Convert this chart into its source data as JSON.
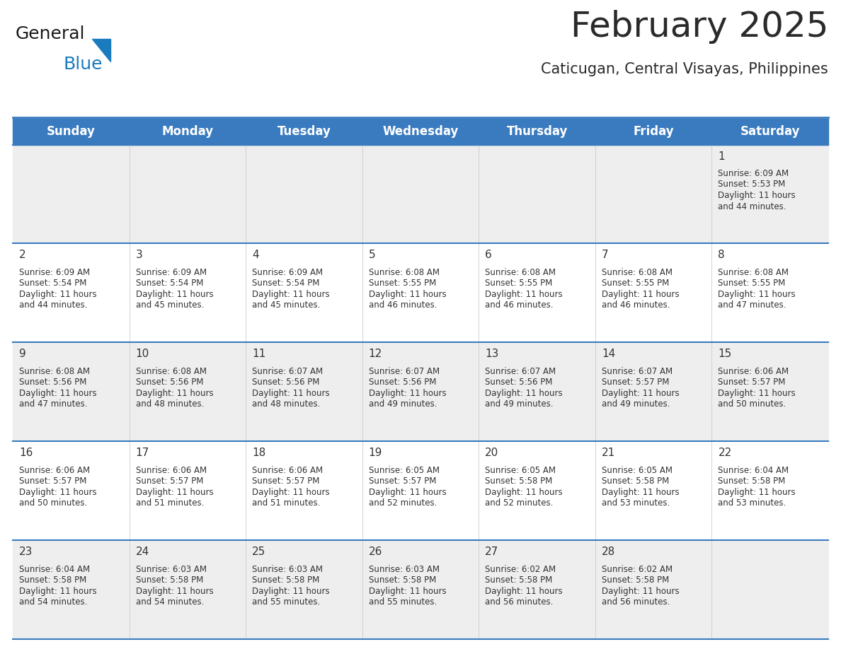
{
  "title": "February 2025",
  "subtitle": "Caticugan, Central Visayas, Philippines",
  "header_bg": "#3a7bbf",
  "header_text": "#ffffff",
  "odd_row_bg": "#eeeeee",
  "even_row_bg": "#ffffff",
  "day_headers": [
    "Sunday",
    "Monday",
    "Tuesday",
    "Wednesday",
    "Thursday",
    "Friday",
    "Saturday"
  ],
  "days": [
    {
      "date": 1,
      "col": 6,
      "row": 0,
      "sunrise": "6:09 AM",
      "sunset": "5:53 PM",
      "daylight_h": "11 hours",
      "daylight_m": "and 44 minutes."
    },
    {
      "date": 2,
      "col": 0,
      "row": 1,
      "sunrise": "6:09 AM",
      "sunset": "5:54 PM",
      "daylight_h": "11 hours",
      "daylight_m": "and 44 minutes."
    },
    {
      "date": 3,
      "col": 1,
      "row": 1,
      "sunrise": "6:09 AM",
      "sunset": "5:54 PM",
      "daylight_h": "11 hours",
      "daylight_m": "and 45 minutes."
    },
    {
      "date": 4,
      "col": 2,
      "row": 1,
      "sunrise": "6:09 AM",
      "sunset": "5:54 PM",
      "daylight_h": "11 hours",
      "daylight_m": "and 45 minutes."
    },
    {
      "date": 5,
      "col": 3,
      "row": 1,
      "sunrise": "6:08 AM",
      "sunset": "5:55 PM",
      "daylight_h": "11 hours",
      "daylight_m": "and 46 minutes."
    },
    {
      "date": 6,
      "col": 4,
      "row": 1,
      "sunrise": "6:08 AM",
      "sunset": "5:55 PM",
      "daylight_h": "11 hours",
      "daylight_m": "and 46 minutes."
    },
    {
      "date": 7,
      "col": 5,
      "row": 1,
      "sunrise": "6:08 AM",
      "sunset": "5:55 PM",
      "daylight_h": "11 hours",
      "daylight_m": "and 46 minutes."
    },
    {
      "date": 8,
      "col": 6,
      "row": 1,
      "sunrise": "6:08 AM",
      "sunset": "5:55 PM",
      "daylight_h": "11 hours",
      "daylight_m": "and 47 minutes."
    },
    {
      "date": 9,
      "col": 0,
      "row": 2,
      "sunrise": "6:08 AM",
      "sunset": "5:56 PM",
      "daylight_h": "11 hours",
      "daylight_m": "and 47 minutes."
    },
    {
      "date": 10,
      "col": 1,
      "row": 2,
      "sunrise": "6:08 AM",
      "sunset": "5:56 PM",
      "daylight_h": "11 hours",
      "daylight_m": "and 48 minutes."
    },
    {
      "date": 11,
      "col": 2,
      "row": 2,
      "sunrise": "6:07 AM",
      "sunset": "5:56 PM",
      "daylight_h": "11 hours",
      "daylight_m": "and 48 minutes."
    },
    {
      "date": 12,
      "col": 3,
      "row": 2,
      "sunrise": "6:07 AM",
      "sunset": "5:56 PM",
      "daylight_h": "11 hours",
      "daylight_m": "and 49 minutes."
    },
    {
      "date": 13,
      "col": 4,
      "row": 2,
      "sunrise": "6:07 AM",
      "sunset": "5:56 PM",
      "daylight_h": "11 hours",
      "daylight_m": "and 49 minutes."
    },
    {
      "date": 14,
      "col": 5,
      "row": 2,
      "sunrise": "6:07 AM",
      "sunset": "5:57 PM",
      "daylight_h": "11 hours",
      "daylight_m": "and 49 minutes."
    },
    {
      "date": 15,
      "col": 6,
      "row": 2,
      "sunrise": "6:06 AM",
      "sunset": "5:57 PM",
      "daylight_h": "11 hours",
      "daylight_m": "and 50 minutes."
    },
    {
      "date": 16,
      "col": 0,
      "row": 3,
      "sunrise": "6:06 AM",
      "sunset": "5:57 PM",
      "daylight_h": "11 hours",
      "daylight_m": "and 50 minutes."
    },
    {
      "date": 17,
      "col": 1,
      "row": 3,
      "sunrise": "6:06 AM",
      "sunset": "5:57 PM",
      "daylight_h": "11 hours",
      "daylight_m": "and 51 minutes."
    },
    {
      "date": 18,
      "col": 2,
      "row": 3,
      "sunrise": "6:06 AM",
      "sunset": "5:57 PM",
      "daylight_h": "11 hours",
      "daylight_m": "and 51 minutes."
    },
    {
      "date": 19,
      "col": 3,
      "row": 3,
      "sunrise": "6:05 AM",
      "sunset": "5:57 PM",
      "daylight_h": "11 hours",
      "daylight_m": "and 52 minutes."
    },
    {
      "date": 20,
      "col": 4,
      "row": 3,
      "sunrise": "6:05 AM",
      "sunset": "5:58 PM",
      "daylight_h": "11 hours",
      "daylight_m": "and 52 minutes."
    },
    {
      "date": 21,
      "col": 5,
      "row": 3,
      "sunrise": "6:05 AM",
      "sunset": "5:58 PM",
      "daylight_h": "11 hours",
      "daylight_m": "and 53 minutes."
    },
    {
      "date": 22,
      "col": 6,
      "row": 3,
      "sunrise": "6:04 AM",
      "sunset": "5:58 PM",
      "daylight_h": "11 hours",
      "daylight_m": "and 53 minutes."
    },
    {
      "date": 23,
      "col": 0,
      "row": 4,
      "sunrise": "6:04 AM",
      "sunset": "5:58 PM",
      "daylight_h": "11 hours",
      "daylight_m": "and 54 minutes."
    },
    {
      "date": 24,
      "col": 1,
      "row": 4,
      "sunrise": "6:03 AM",
      "sunset": "5:58 PM",
      "daylight_h": "11 hours",
      "daylight_m": "and 54 minutes."
    },
    {
      "date": 25,
      "col": 2,
      "row": 4,
      "sunrise": "6:03 AM",
      "sunset": "5:58 PM",
      "daylight_h": "11 hours",
      "daylight_m": "and 55 minutes."
    },
    {
      "date": 26,
      "col": 3,
      "row": 4,
      "sunrise": "6:03 AM",
      "sunset": "5:58 PM",
      "daylight_h": "11 hours",
      "daylight_m": "and 55 minutes."
    },
    {
      "date": 27,
      "col": 4,
      "row": 4,
      "sunrise": "6:02 AM",
      "sunset": "5:58 PM",
      "daylight_h": "11 hours",
      "daylight_m": "and 56 minutes."
    },
    {
      "date": 28,
      "col": 5,
      "row": 4,
      "sunrise": "6:02 AM",
      "sunset": "5:58 PM",
      "daylight_h": "11 hours",
      "daylight_m": "and 56 minutes."
    }
  ],
  "logo_text_general": "General",
  "logo_text_blue": "Blue",
  "logo_color_general": "#1a1a1a",
  "logo_color_blue": "#1a7bbf",
  "logo_triangle_color": "#1a7bbf",
  "title_color": "#2a2a2a",
  "subtitle_color": "#2a2a2a",
  "cell_text_color": "#333333",
  "date_num_color": "#333333",
  "row_line_color": "#3a7bbf",
  "col_line_color": "#cccccc",
  "title_fontsize": 36,
  "subtitle_fontsize": 15,
  "header_fontsize": 12,
  "cell_fontsize": 8.5,
  "date_fontsize": 11
}
